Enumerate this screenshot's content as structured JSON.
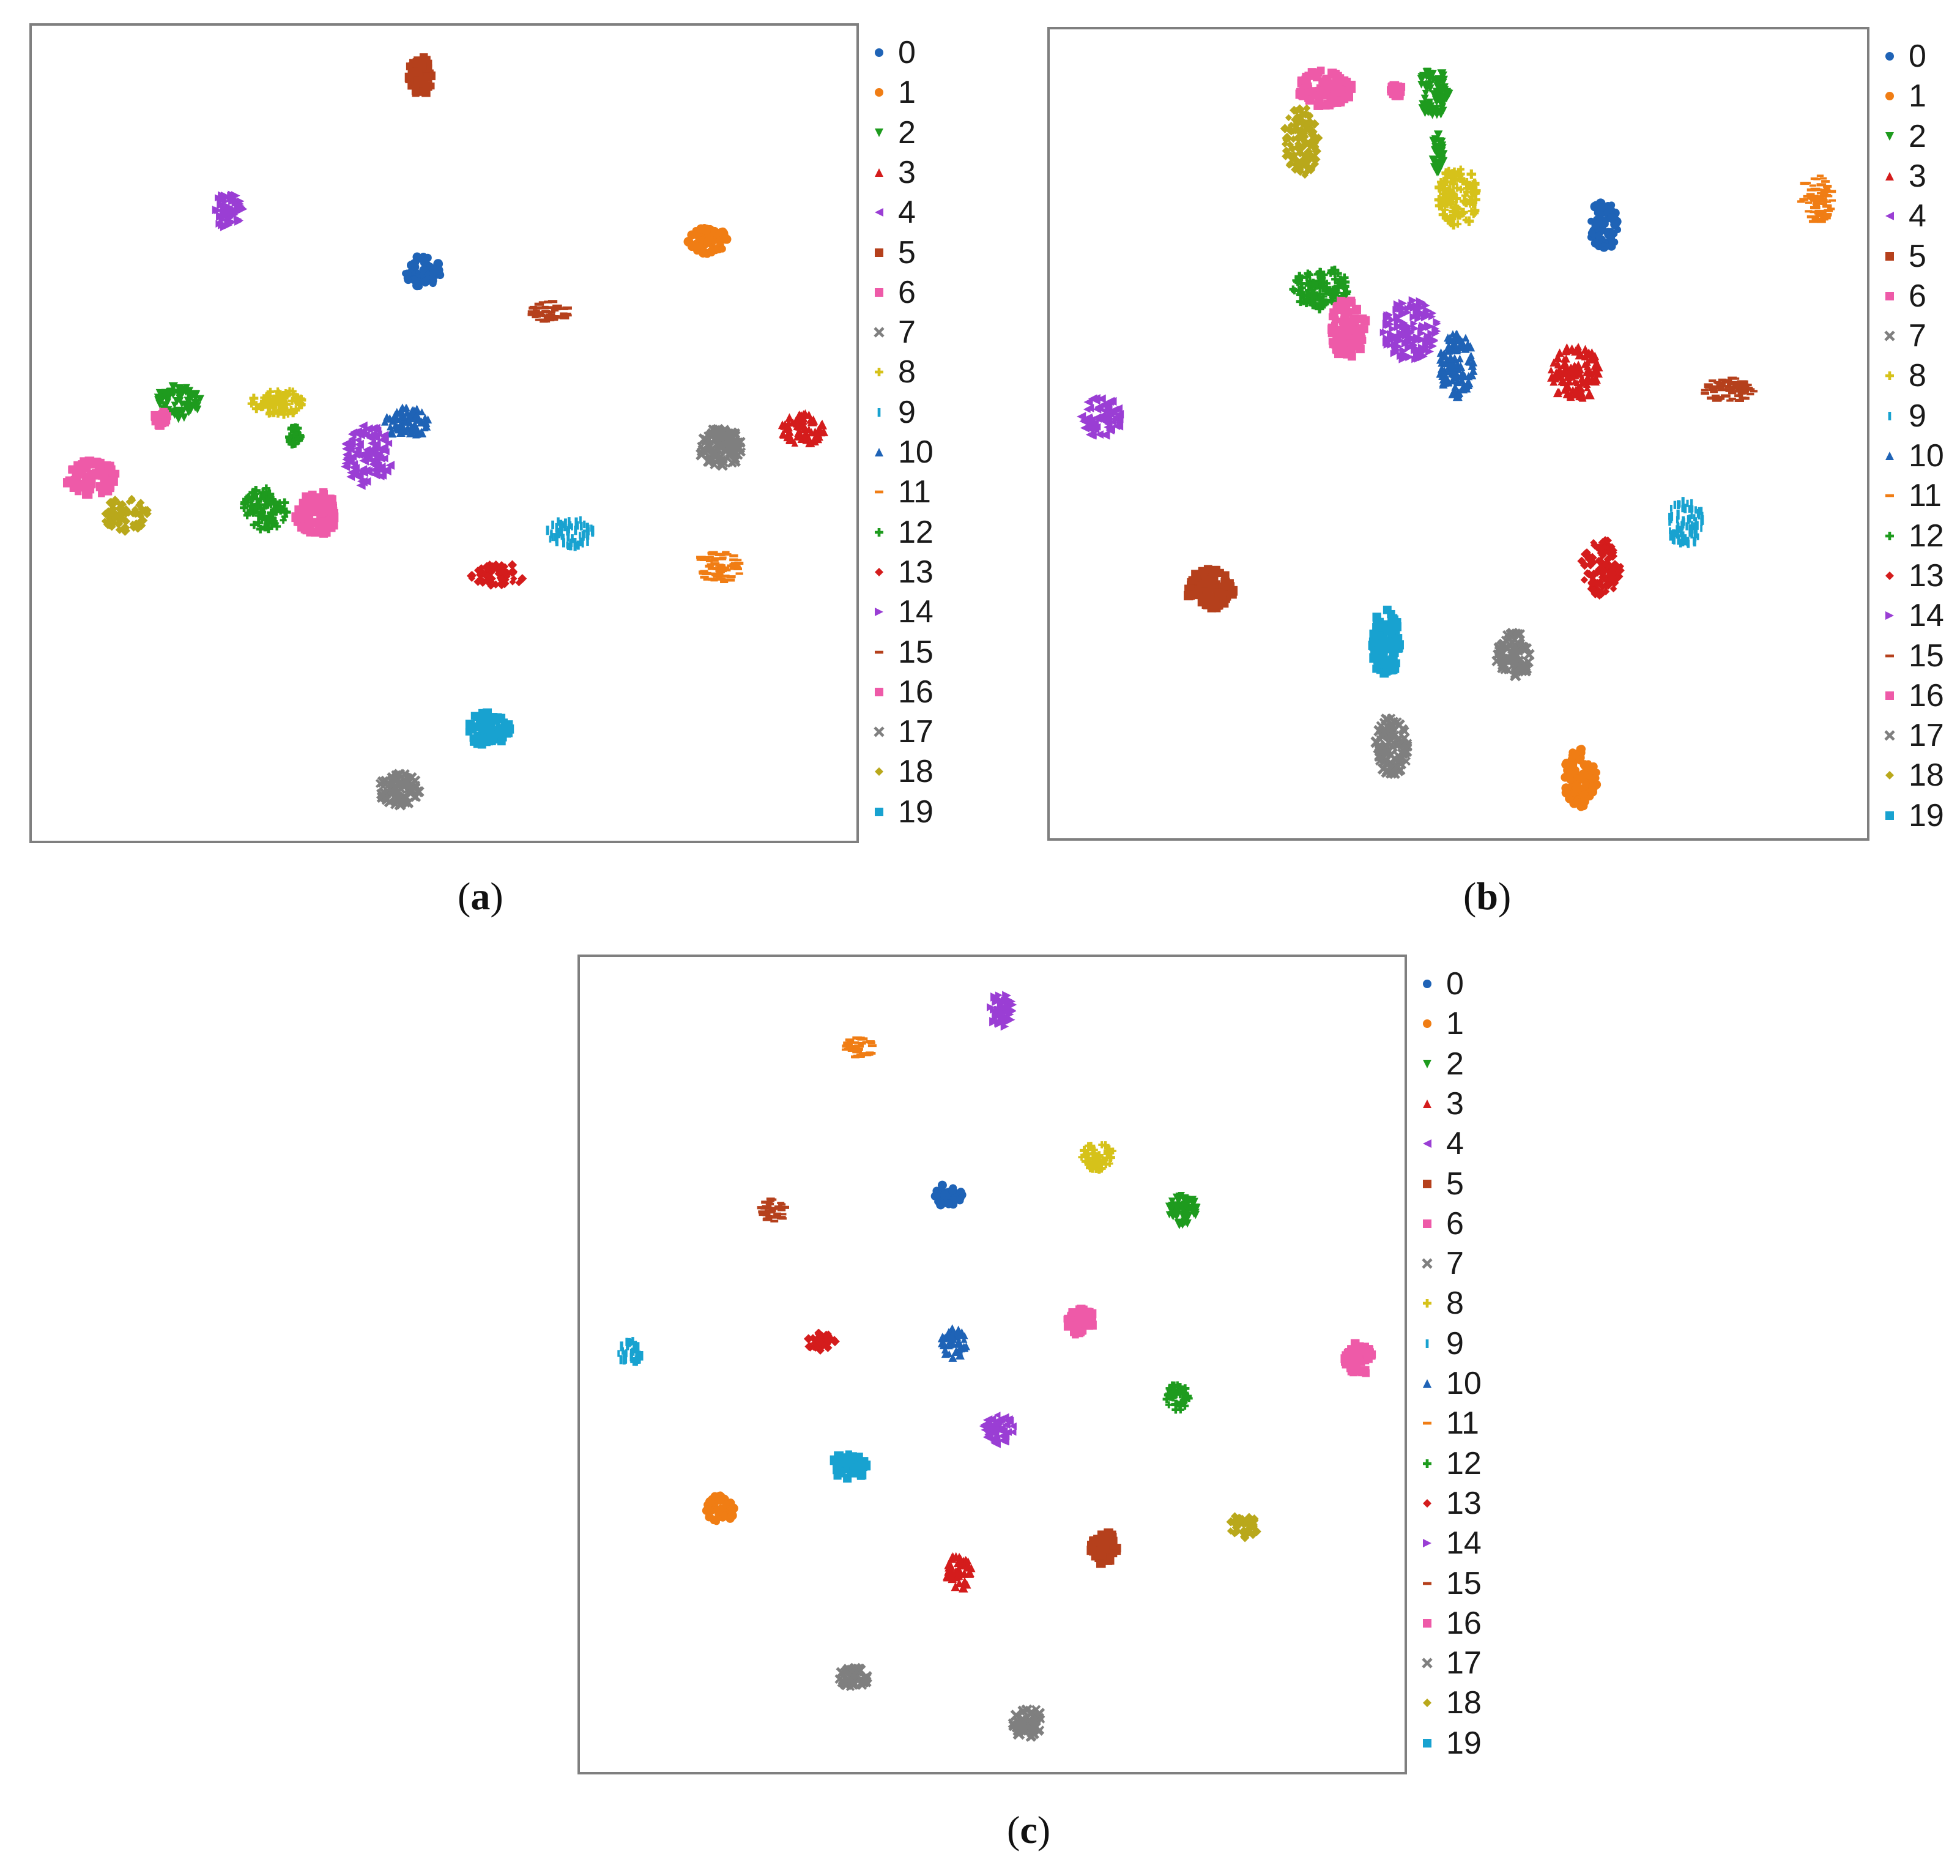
{
  "colors": [
    "#1f63b6",
    "#f07d14",
    "#1e9b1e",
    "#d41c1c",
    "#9a3ed4",
    "#b5401c",
    "#ee5aa8",
    "#7f7f7f",
    "#d6c21a",
    "#18a2d0",
    "#1f63b6",
    "#f07d14",
    "#1e9b1e",
    "#d41c1c",
    "#9a3ed4",
    "#b5401c",
    "#ee5aa8",
    "#7f7f7f",
    "#b9a81b",
    "#18a2d0"
  ],
  "legend_markers": [
    "circle",
    "circle",
    "triangle-down",
    "triangle-up",
    "triangle-left",
    "square",
    "square",
    "cross",
    "plus",
    "vline",
    "triangle-up",
    "hline",
    "plus",
    "diamond",
    "triangle-right",
    "hline",
    "square",
    "cross",
    "diamond",
    "square"
  ],
  "captions": {
    "a": {
      "open": "(",
      "letter": "a",
      "close": ")"
    },
    "b": {
      "open": "(",
      "letter": "b",
      "close": ")"
    },
    "c": {
      "open": "(",
      "letter": "c",
      "close": ")"
    }
  },
  "chart_data": [
    {
      "type": "scatter",
      "panel": "a",
      "title": "",
      "xlabel": "",
      "ylabel": "",
      "xlim": [
        0,
        100
      ],
      "ylim": [
        0,
        100
      ],
      "grid": false,
      "legend": {
        "placement": "right-outside",
        "entries": [
          "0",
          "1",
          "2",
          "3",
          "4",
          "5",
          "6",
          "7",
          "8",
          "9",
          "10",
          "11",
          "12",
          "13",
          "14",
          "15",
          "16",
          "17",
          "18",
          "19"
        ]
      },
      "clusters": [
        {
          "label": "5",
          "x": 47.1,
          "y": 93.8,
          "rx": 1.6,
          "ry": 2.4
        },
        {
          "label": "14",
          "x": 23.9,
          "y": 77.4,
          "rx": 1.9,
          "ry": 2.2
        },
        {
          "label": "0",
          "x": 47.4,
          "y": 69.8,
          "rx": 2.2,
          "ry": 2.0
        },
        {
          "label": "1",
          "x": 82.0,
          "y": 73.7,
          "rx": 2.4,
          "ry": 1.7
        },
        {
          "label": "15",
          "x": 62.8,
          "y": 64.9,
          "rx": 2.6,
          "ry": 1.3
        },
        {
          "label": "2",
          "x": 17.8,
          "y": 53.8,
          "rx": 2.7,
          "ry": 2.0
        },
        {
          "label": "6",
          "x": 15.7,
          "y": 51.8,
          "rx": 0.8,
          "ry": 0.9
        },
        {
          "label": "8",
          "x": 29.9,
          "y": 53.8,
          "rx": 3.3,
          "ry": 1.6
        },
        {
          "label": "12",
          "x": 31.8,
          "y": 49.7,
          "rx": 0.9,
          "ry": 1.1
        },
        {
          "label": "10",
          "x": 45.5,
          "y": 51.3,
          "rx": 2.7,
          "ry": 1.9
        },
        {
          "label": "4",
          "x": 40.7,
          "y": 47.2,
          "rx": 2.9,
          "ry": 3.8
        },
        {
          "label": "3",
          "x": 93.5,
          "y": 50.5,
          "rx": 2.6,
          "ry": 1.9
        },
        {
          "label": "7",
          "x": 83.5,
          "y": 48.3,
          "rx": 2.7,
          "ry": 2.3
        },
        {
          "label": "6",
          "x": 7.3,
          "y": 44.5,
          "rx": 3.1,
          "ry": 2.1
        },
        {
          "label": "18",
          "x": 11.4,
          "y": 40.0,
          "rx": 2.8,
          "ry": 2.1
        },
        {
          "label": "12",
          "x": 28.3,
          "y": 40.7,
          "rx": 2.7,
          "ry": 2.6
        },
        {
          "label": "16",
          "x": 34.5,
          "y": 40.2,
          "rx": 2.6,
          "ry": 2.7
        },
        {
          "label": "9",
          "x": 65.4,
          "y": 37.8,
          "rx": 2.9,
          "ry": 1.7
        },
        {
          "label": "13",
          "x": 56.5,
          "y": 32.6,
          "rx": 3.4,
          "ry": 1.5
        },
        {
          "label": "11",
          "x": 83.3,
          "y": 33.5,
          "rx": 2.8,
          "ry": 2.0
        },
        {
          "label": "19",
          "x": 55.3,
          "y": 13.7,
          "rx": 2.7,
          "ry": 2.1
        },
        {
          "label": "17",
          "x": 44.6,
          "y": 6.4,
          "rx": 2.6,
          "ry": 2.0
        }
      ]
    },
    {
      "type": "scatter",
      "panel": "b",
      "title": "",
      "xlabel": "",
      "ylabel": "",
      "xlim": [
        0,
        100
      ],
      "ylim": [
        0,
        100
      ],
      "grid": false,
      "legend": {
        "placement": "right-outside",
        "entries": [
          "0",
          "1",
          "2",
          "3",
          "4",
          "5",
          "6",
          "7",
          "8",
          "9",
          "10",
          "11",
          "12",
          "13",
          "14",
          "15",
          "16",
          "17",
          "18",
          "19"
        ]
      },
      "clusters": [
        {
          "label": "6",
          "x": 33.7,
          "y": 92.7,
          "rx": 3.3,
          "ry": 2.4
        },
        {
          "label": "18",
          "x": 30.8,
          "y": 86.2,
          "rx": 2.2,
          "ry": 4.4
        },
        {
          "label": "16",
          "x": 42.4,
          "y": 92.4,
          "rx": 0.8,
          "ry": 0.8
        },
        {
          "label": "2",
          "x": 46.9,
          "y": 92.0,
          "rx": 2.0,
          "ry": 3.0
        },
        {
          "label": "2",
          "x": 47.5,
          "y": 85.0,
          "rx": 0.7,
          "ry": 2.8
        },
        {
          "label": "8",
          "x": 50.0,
          "y": 79.4,
          "rx": 2.5,
          "ry": 3.7
        },
        {
          "label": "11",
          "x": 93.8,
          "y": 79.0,
          "rx": 2.0,
          "ry": 3.0
        },
        {
          "label": "0",
          "x": 67.8,
          "y": 75.7,
          "rx": 1.8,
          "ry": 3.1
        },
        {
          "label": "12",
          "x": 33.1,
          "y": 68.0,
          "rx": 3.5,
          "ry": 2.6
        },
        {
          "label": "16",
          "x": 36.5,
          "y": 63.0,
          "rx": 2.2,
          "ry": 3.7
        },
        {
          "label": "14",
          "x": 44.2,
          "y": 62.8,
          "rx": 3.4,
          "ry": 3.8
        },
        {
          "label": "10",
          "x": 49.8,
          "y": 58.5,
          "rx": 2.1,
          "ry": 4.0
        },
        {
          "label": "3",
          "x": 64.3,
          "y": 57.5,
          "rx": 3.1,
          "ry": 3.4
        },
        {
          "label": "15",
          "x": 83.1,
          "y": 55.5,
          "rx": 3.1,
          "ry": 1.6
        },
        {
          "label": "4",
          "x": 6.2,
          "y": 52.0,
          "rx": 2.4,
          "ry": 2.6
        },
        {
          "label": "9",
          "x": 77.8,
          "y": 39.0,
          "rx": 2.3,
          "ry": 2.8
        },
        {
          "label": "13",
          "x": 67.5,
          "y": 33.5,
          "rx": 2.5,
          "ry": 3.5
        },
        {
          "label": "5",
          "x": 19.7,
          "y": 30.8,
          "rx": 2.9,
          "ry": 2.6
        },
        {
          "label": "19",
          "x": 41.1,
          "y": 24.0,
          "rx": 1.7,
          "ry": 4.4
        },
        {
          "label": "7",
          "x": 56.7,
          "y": 22.7,
          "rx": 2.1,
          "ry": 2.9
        },
        {
          "label": "17",
          "x": 41.9,
          "y": 11.6,
          "rx": 2.1,
          "ry": 3.7
        },
        {
          "label": "1",
          "x": 65.0,
          "y": 7.5,
          "rx": 2.2,
          "ry": 3.6
        }
      ]
    },
    {
      "type": "scatter",
      "panel": "c",
      "title": "",
      "xlabel": "",
      "ylabel": "",
      "xlim": [
        0,
        100
      ],
      "ylim": [
        0,
        100
      ],
      "grid": false,
      "legend": {
        "placement": "right-outside",
        "entries": [
          "0",
          "1",
          "2",
          "3",
          "4",
          "5",
          "6",
          "7",
          "8",
          "9",
          "10",
          "11",
          "12",
          "13",
          "14",
          "15",
          "16",
          "17",
          "18",
          "19"
        ]
      },
      "clusters": [
        {
          "label": "14",
          "x": 51.2,
          "y": 93.5,
          "rx": 1.4,
          "ry": 2.1
        },
        {
          "label": "11",
          "x": 33.9,
          "y": 88.9,
          "rx": 1.8,
          "ry": 1.3
        },
        {
          "label": "8",
          "x": 62.8,
          "y": 75.6,
          "rx": 2.0,
          "ry": 1.7
        },
        {
          "label": "0",
          "x": 44.6,
          "y": 70.8,
          "rx": 1.7,
          "ry": 1.4
        },
        {
          "label": "2",
          "x": 73.1,
          "y": 68.9,
          "rx": 1.8,
          "ry": 1.9
        },
        {
          "label": "15",
          "x": 23.5,
          "y": 68.9,
          "rx": 1.6,
          "ry": 1.5
        },
        {
          "label": "16",
          "x": 60.7,
          "y": 55.3,
          "rx": 1.7,
          "ry": 1.8
        },
        {
          "label": "13",
          "x": 29.2,
          "y": 52.9,
          "rx": 1.8,
          "ry": 1.2
        },
        {
          "label": "10",
          "x": 45.3,
          "y": 52.6,
          "rx": 1.6,
          "ry": 1.9
        },
        {
          "label": "9",
          "x": 6.1,
          "y": 51.5,
          "rx": 1.5,
          "ry": 1.5
        },
        {
          "label": "16",
          "x": 94.4,
          "y": 50.7,
          "rx": 1.7,
          "ry": 2.1
        },
        {
          "label": "12",
          "x": 72.5,
          "y": 46.1,
          "rx": 1.4,
          "ry": 1.7
        },
        {
          "label": "4",
          "x": 50.7,
          "y": 42.0,
          "rx": 1.9,
          "ry": 1.8
        },
        {
          "label": "19",
          "x": 32.7,
          "y": 37.5,
          "rx": 2.1,
          "ry": 1.6
        },
        {
          "label": "1",
          "x": 17.0,
          "y": 32.3,
          "rx": 1.7,
          "ry": 1.7
        },
        {
          "label": "18",
          "x": 80.5,
          "y": 30.2,
          "rx": 1.8,
          "ry": 1.5
        },
        {
          "label": "5",
          "x": 63.5,
          "y": 27.5,
          "rx": 1.7,
          "ry": 2.0
        },
        {
          "label": "3",
          "x": 46.0,
          "y": 24.6,
          "rx": 1.7,
          "ry": 2.1
        },
        {
          "label": "7",
          "x": 33.1,
          "y": 11.6,
          "rx": 1.8,
          "ry": 1.2
        },
        {
          "label": "17",
          "x": 54.3,
          "y": 6.1,
          "rx": 1.8,
          "ry": 1.9
        }
      ]
    }
  ]
}
